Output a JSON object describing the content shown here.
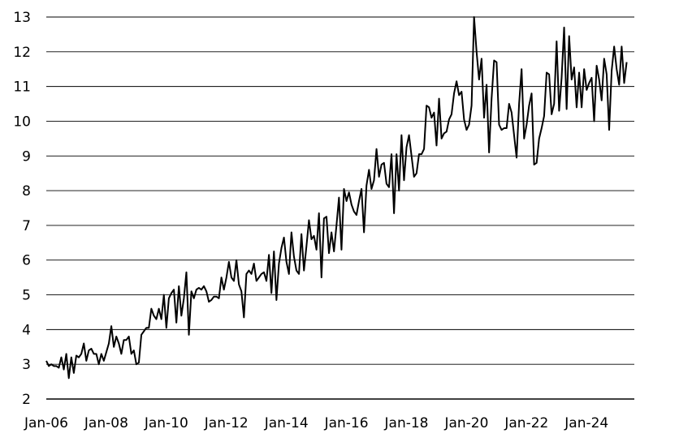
{
  "chart_data": {
    "type": "line",
    "title": "",
    "xlabel": "",
    "ylabel": "",
    "ylim": [
      2,
      13
    ],
    "yticks": [
      "2",
      "3",
      "4",
      "5",
      "6",
      "7",
      "8",
      "9",
      "10",
      "11",
      "12",
      "13"
    ],
    "xticks": [
      "Jan-06",
      "Jan-08",
      "Jan-10",
      "Jan-12",
      "Jan-14",
      "Jan-16",
      "Jan-18",
      "Jan-20",
      "Jan-22",
      "Jan-24"
    ],
    "grid": "horizontal",
    "series": [
      {
        "x_start": "2006-01",
        "frequency": "monthly",
        "values": [
          3.1,
          2.95,
          3.0,
          2.95,
          2.95,
          2.9,
          3.2,
          2.85,
          3.3,
          2.6,
          3.2,
          2.75,
          3.25,
          3.2,
          3.3,
          3.6,
          3.1,
          3.4,
          3.45,
          3.3,
          3.3,
          3.0,
          3.3,
          3.1,
          3.35,
          3.6,
          4.1,
          3.5,
          3.8,
          3.6,
          3.3,
          3.7,
          3.7,
          3.8,
          3.3,
          3.4,
          3.0,
          3.05,
          3.85,
          3.95,
          4.05,
          4.05,
          4.6,
          4.4,
          4.3,
          4.6,
          4.3,
          5.0,
          4.05,
          4.9,
          5.05,
          5.15,
          4.2,
          5.25,
          4.4,
          4.9,
          5.65,
          3.85,
          5.1,
          4.9,
          5.15,
          5.2,
          5.15,
          5.25,
          5.1,
          4.8,
          4.85,
          4.95,
          4.95,
          4.9,
          5.5,
          5.15,
          5.5,
          5.95,
          5.5,
          5.4,
          6.0,
          5.3,
          5.1,
          4.35,
          5.6,
          5.7,
          5.6,
          5.9,
          5.4,
          5.5,
          5.6,
          5.65,
          5.4,
          6.15,
          5.05,
          6.25,
          4.85,
          5.9,
          6.35,
          6.65,
          5.95,
          5.6,
          6.8,
          6.1,
          5.7,
          5.6,
          6.75,
          5.7,
          6.4,
          7.15,
          6.6,
          6.7,
          6.3,
          7.35,
          5.5,
          7.2,
          7.25,
          6.2,
          6.8,
          6.25,
          7.0,
          7.8,
          6.3,
          8.05,
          7.7,
          7.95,
          7.6,
          7.4,
          7.3,
          7.7,
          8.05,
          6.8,
          8.15,
          8.6,
          8.05,
          8.3,
          9.2,
          8.4,
          8.75,
          8.8,
          8.2,
          8.1,
          9.05,
          7.35,
          9.05,
          8.0,
          9.6,
          8.3,
          9.25,
          9.6,
          9.0,
          8.4,
          8.5,
          9.05,
          9.05,
          9.2,
          10.45,
          10.4,
          10.1,
          10.25,
          9.3,
          10.65,
          9.5,
          9.65,
          9.7,
          10.05,
          10.2,
          10.8,
          11.15,
          10.75,
          10.85,
          10.05,
          9.75,
          9.9,
          10.45,
          13.0,
          12.0,
          11.2,
          11.8,
          10.1,
          11.05,
          9.1,
          10.65,
          11.75,
          11.7,
          9.9,
          9.75,
          9.8,
          9.8,
          10.5,
          10.25,
          9.6,
          8.95,
          10.5,
          11.5,
          9.5,
          9.9,
          10.45,
          10.8,
          8.75,
          8.8,
          9.5,
          9.8,
          10.15,
          11.4,
          11.35,
          10.2,
          10.5,
          12.3,
          10.3,
          11.25,
          12.7,
          10.35,
          12.45,
          11.2,
          11.55,
          10.4,
          11.4,
          10.4,
          11.5,
          10.9,
          11.1,
          11.25,
          10.0,
          11.6,
          11.2,
          10.6,
          11.8,
          11.35,
          9.75,
          11.45,
          12.15,
          11.5,
          11.05,
          12.15,
          11.1,
          11.7
        ]
      }
    ]
  }
}
